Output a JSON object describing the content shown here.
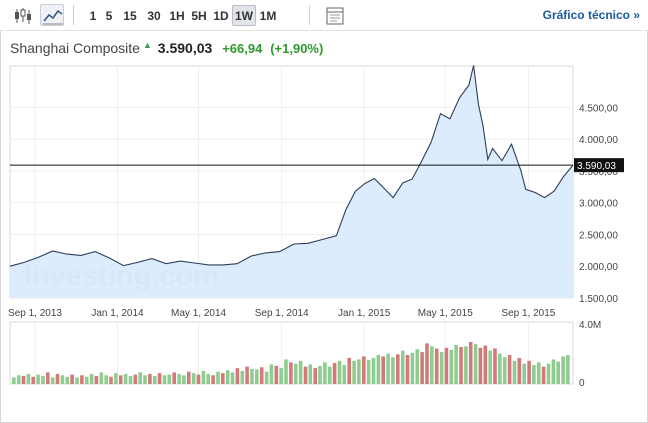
{
  "toolbar": {
    "chart_type_icons": [
      "candlestick-icon",
      "line-chart-icon"
    ],
    "timeframes": [
      "1",
      "5",
      "15",
      "30",
      "1H",
      "5H",
      "1D",
      "1W",
      "1M"
    ],
    "active_timeframe": "1W",
    "settings_icon": "chart-settings-icon",
    "technical_link": "Gráfico técnico »"
  },
  "header": {
    "name": "Shanghai Composite",
    "price": "3.590,03",
    "change": "+66,94",
    "change_pct": "(+1,90%)",
    "change_color": "#2d9a2d"
  },
  "watermark": "Investing.com",
  "chart_data": [
    {
      "type": "area",
      "x_ticks": [
        "Sep 1, 2013",
        "Jan 1, 2014",
        "May 1, 2014",
        "Sep 1, 2014",
        "Jan 1, 2015",
        "May 1, 2015",
        "Sep 1, 2015"
      ],
      "y_ticks": [
        "1.500,00",
        "2.000,00",
        "2.500,00",
        "3.000,00",
        "3.500,00",
        "4.000,00",
        "4.500,00"
      ],
      "ylim": [
        1500,
        5150
      ],
      "current_value": 3590.03,
      "current_label": "3.590,03",
      "x": [
        "2013-07-26",
        "2013-08-16",
        "2013-09-06",
        "2013-09-27",
        "2013-10-18",
        "2013-11-08",
        "2013-11-29",
        "2013-12-20",
        "2014-01-10",
        "2014-01-31",
        "2014-02-21",
        "2014-03-14",
        "2014-04-04",
        "2014-04-25",
        "2014-05-16",
        "2014-06-06",
        "2014-06-27",
        "2014-07-18",
        "2014-08-08",
        "2014-08-29",
        "2014-09-19",
        "2014-10-10",
        "2014-10-31",
        "2014-11-21",
        "2014-12-05",
        "2014-12-19",
        "2015-01-02",
        "2015-01-16",
        "2015-01-30",
        "2015-02-13",
        "2015-02-27",
        "2015-03-13",
        "2015-03-27",
        "2015-04-10",
        "2015-04-24",
        "2015-05-08",
        "2015-05-22",
        "2015-06-05",
        "2015-06-12",
        "2015-06-19",
        "2015-06-26",
        "2015-07-03",
        "2015-07-10",
        "2015-07-24",
        "2015-08-07",
        "2015-08-21",
        "2015-08-28",
        "2015-09-11",
        "2015-09-25",
        "2015-10-09",
        "2015-10-23",
        "2015-11-06"
      ],
      "values": [
        2000,
        2060,
        2140,
        2240,
        2190,
        2170,
        2230,
        2130,
        2010,
        2060,
        2120,
        2040,
        2080,
        2050,
        2020,
        2020,
        2040,
        2160,
        2210,
        2230,
        2350,
        2360,
        2420,
        2480,
        2890,
        3180,
        3300,
        3380,
        3230,
        3080,
        3310,
        3370,
        3650,
        3950,
        4400,
        4320,
        4650,
        4850,
        5160,
        4550,
        4200,
        3680,
        3850,
        3660,
        3920,
        3500,
        3210,
        3160,
        3080,
        3180,
        3410,
        3590
      ],
      "volume_ticks": [
        "4.0M",
        "0"
      ],
      "volume_values": [
        0.45,
        0.6,
        0.55,
        0.7,
        0.5,
        0.65,
        0.55,
        0.8,
        0.45,
        0.7,
        0.6,
        0.5,
        0.65,
        0.45,
        0.6,
        0.5,
        0.7,
        0.55,
        0.8,
        0.6,
        0.5,
        0.75,
        0.6,
        0.7,
        0.55,
        0.65,
        0.8,
        0.6,
        0.7,
        0.55,
        0.75,
        0.6,
        0.65,
        0.8,
        0.7,
        0.6,
        0.85,
        0.75,
        0.65,
        0.9,
        0.7,
        0.6,
        0.85,
        0.75,
        0.95,
        0.8,
        1.1,
        0.9,
        1.2,
        1.05,
        1.0,
        1.15,
        0.85,
        1.35,
        1.25,
        1.1,
        1.7,
        1.5,
        1.4,
        1.6,
        1.2,
        1.35,
        1.1,
        1.25,
        1.5,
        1.2,
        1.45,
        1.6,
        1.3,
        1.8,
        1.6,
        1.7,
        1.9,
        1.65,
        1.8,
        2.0,
        1.9,
        2.1,
        1.85,
        2.05,
        2.3,
        2.0,
        2.15,
        2.4,
        2.2,
        2.8,
        2.6,
        2.45,
        2.2,
        2.5,
        2.35,
        2.7,
        2.55,
        2.6,
        2.9,
        2.75,
        2.5,
        2.65,
        2.3,
        2.45,
        2.1,
        1.85,
        2.0,
        1.6,
        1.8,
        1.4,
        1.6,
        1.3,
        1.5,
        1.2,
        1.4,
        1.7,
        1.55,
        1.9,
        2.0
      ],
      "volume_colors": [
        "g",
        "g",
        "r",
        "g",
        "r",
        "g",
        "g",
        "r",
        "g",
        "r",
        "g",
        "g",
        "r",
        "g",
        "r",
        "g",
        "g",
        "r",
        "g",
        "g",
        "r",
        "g",
        "r",
        "g",
        "g",
        "r",
        "g",
        "g",
        "r",
        "g",
        "r",
        "g",
        "g",
        "r",
        "g",
        "g",
        "r",
        "g",
        "r",
        "g",
        "g",
        "r",
        "g",
        "r",
        "g",
        "g",
        "r",
        "g",
        "r",
        "g",
        "g",
        "r",
        "g",
        "g",
        "r",
        "g",
        "g",
        "r",
        "g",
        "g",
        "r",
        "g",
        "r",
        "g",
        "g",
        "g",
        "r",
        "g",
        "g",
        "r",
        "g",
        "g",
        "r",
        "g",
        "g",
        "g",
        "r",
        "g",
        "g",
        "r",
        "g",
        "r",
        "g",
        "g",
        "r",
        "r",
        "g",
        "r",
        "g",
        "r",
        "g",
        "g",
        "r",
        "g",
        "r",
        "g",
        "r",
        "r",
        "g",
        "r",
        "g",
        "g",
        "r",
        "g",
        "r",
        "g",
        "r",
        "g",
        "g",
        "r",
        "g",
        "g",
        "g"
      ],
      "colors": {
        "line": "#2c3e5c",
        "fill": "#d7e9fb",
        "up_volume": "#8fcc8f",
        "down_volume": "#d27a7a",
        "current_line": "#111111"
      }
    }
  ]
}
